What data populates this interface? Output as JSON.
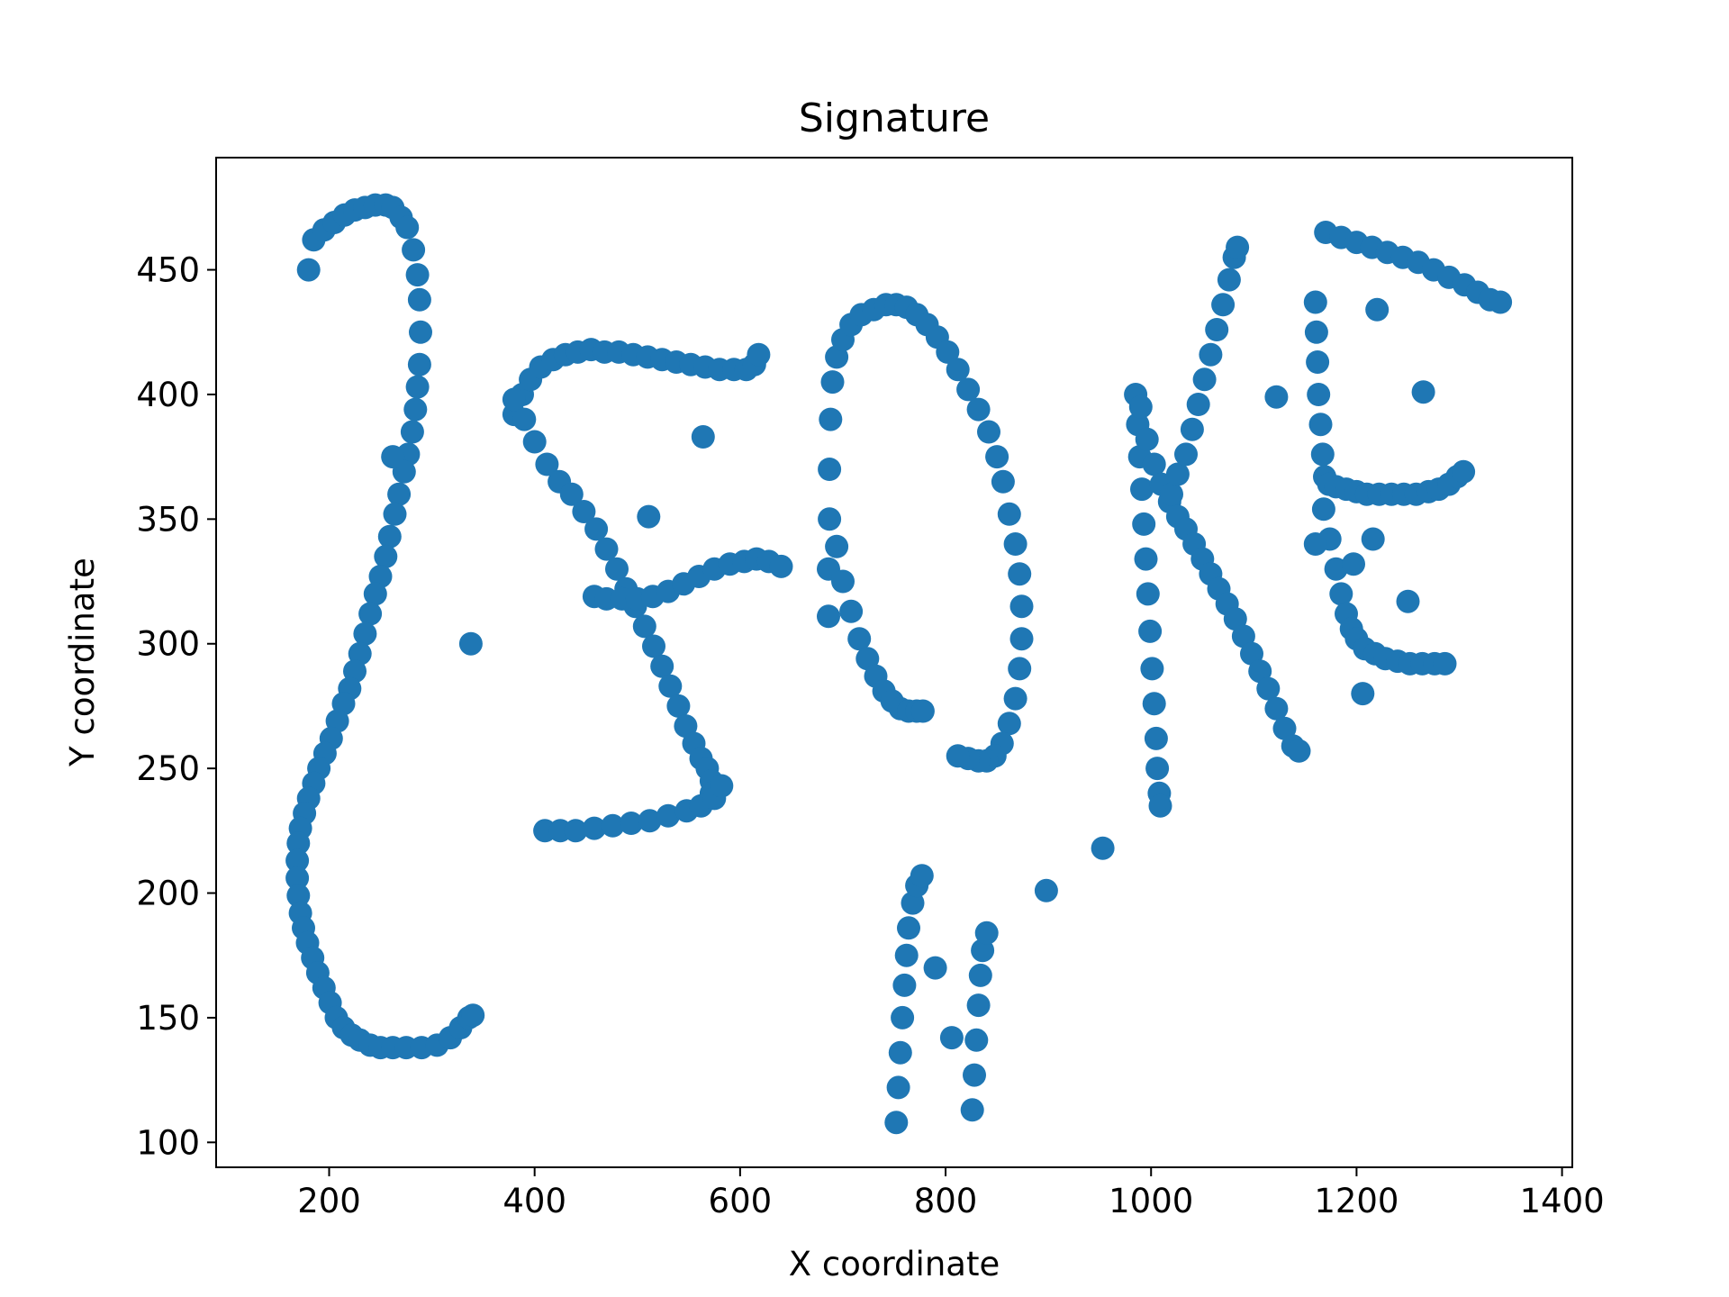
{
  "chart_data": {
    "type": "scatter",
    "title": "Signature",
    "xlabel": "X coordinate",
    "ylabel": "Y coordinate",
    "xlim": [
      90,
      1410
    ],
    "ylim": [
      90,
      495
    ],
    "xticks": [
      200,
      400,
      600,
      800,
      1000,
      1200,
      1400
    ],
    "yticks": [
      100,
      150,
      200,
      250,
      300,
      350,
      400,
      450
    ],
    "grid": false,
    "marker_color": "#1f77b4",
    "series": [
      {
        "points": [
          [
            180,
            450
          ],
          [
            185,
            462
          ],
          [
            195,
            466
          ],
          [
            205,
            469
          ],
          [
            215,
            472
          ],
          [
            225,
            474
          ],
          [
            235,
            475
          ],
          [
            245,
            476
          ],
          [
            255,
            476
          ],
          [
            262,
            475
          ],
          [
            270,
            471
          ],
          [
            276,
            467
          ],
          [
            282,
            458
          ],
          [
            286,
            448
          ],
          [
            288,
            438
          ],
          [
            289,
            425
          ],
          [
            288,
            412
          ],
          [
            286,
            403
          ],
          [
            284,
            394
          ],
          [
            281,
            385
          ],
          [
            277,
            376
          ],
          [
            273,
            369
          ],
          [
            268,
            360
          ],
          [
            264,
            352
          ],
          [
            259,
            343
          ],
          [
            255,
            335
          ],
          [
            250,
            327
          ],
          [
            245,
            320
          ],
          [
            240,
            312
          ],
          [
            235,
            304
          ],
          [
            230,
            296
          ],
          [
            225,
            289
          ],
          [
            220,
            282
          ],
          [
            214,
            276
          ],
          [
            208,
            269
          ],
          [
            202,
            262
          ],
          [
            196,
            256
          ],
          [
            190,
            250
          ],
          [
            185,
            244
          ],
          [
            180,
            238
          ],
          [
            176,
            232
          ],
          [
            172,
            226
          ],
          [
            170,
            220
          ],
          [
            169,
            213
          ],
          [
            169,
            206
          ],
          [
            170,
            199
          ],
          [
            172,
            192
          ],
          [
            175,
            186
          ],
          [
            179,
            180
          ],
          [
            184,
            174
          ],
          [
            189,
            168
          ],
          [
            195,
            162
          ],
          [
            201,
            156
          ],
          [
            207,
            150
          ],
          [
            214,
            146
          ],
          [
            222,
            143
          ],
          [
            230,
            141
          ],
          [
            240,
            139
          ],
          [
            250,
            138
          ],
          [
            262,
            138
          ],
          [
            275,
            138
          ],
          [
            290,
            138
          ],
          [
            305,
            139
          ],
          [
            318,
            142
          ],
          [
            328,
            146
          ],
          [
            336,
            150
          ],
          [
            340,
            151
          ],
          [
            338,
            300
          ],
          [
            262,
            375
          ],
          [
            380,
            392
          ],
          [
            388,
            400
          ],
          [
            396,
            406
          ],
          [
            406,
            411
          ],
          [
            418,
            414
          ],
          [
            430,
            416
          ],
          [
            442,
            417
          ],
          [
            455,
            418
          ],
          [
            468,
            417
          ],
          [
            482,
            417
          ],
          [
            496,
            416
          ],
          [
            510,
            415
          ],
          [
            524,
            414
          ],
          [
            538,
            413
          ],
          [
            552,
            412
          ],
          [
            566,
            411
          ],
          [
            580,
            410
          ],
          [
            594,
            410
          ],
          [
            606,
            410
          ],
          [
            614,
            412
          ],
          [
            618,
            416
          ],
          [
            564,
            383
          ],
          [
            380,
            398
          ],
          [
            390,
            390
          ],
          [
            400,
            381
          ],
          [
            412,
            372
          ],
          [
            424,
            365
          ],
          [
            436,
            360
          ],
          [
            448,
            353
          ],
          [
            460,
            346
          ],
          [
            470,
            338
          ],
          [
            480,
            330
          ],
          [
            489,
            322
          ],
          [
            498,
            315
          ],
          [
            507,
            307
          ],
          [
            516,
            299
          ],
          [
            524,
            291
          ],
          [
            532,
            283
          ],
          [
            540,
            275
          ],
          [
            547,
            267
          ],
          [
            555,
            260
          ],
          [
            562,
            254
          ],
          [
            568,
            250
          ],
          [
            572,
            245
          ],
          [
            572,
            240
          ],
          [
            511,
            351
          ],
          [
            458,
            319
          ],
          [
            470,
            318
          ],
          [
            485,
            318
          ],
          [
            500,
            318
          ],
          [
            515,
            319
          ],
          [
            530,
            321
          ],
          [
            545,
            324
          ],
          [
            560,
            327
          ],
          [
            575,
            330
          ],
          [
            590,
            332
          ],
          [
            604,
            333
          ],
          [
            616,
            334
          ],
          [
            628,
            333
          ],
          [
            640,
            331
          ],
          [
            410,
            225
          ],
          [
            425,
            225
          ],
          [
            440,
            225
          ],
          [
            458,
            226
          ],
          [
            476,
            227
          ],
          [
            494,
            228
          ],
          [
            512,
            229
          ],
          [
            530,
            231
          ],
          [
            548,
            233
          ],
          [
            562,
            235
          ],
          [
            575,
            238
          ],
          [
            582,
            243
          ],
          [
            686,
            311
          ],
          [
            686,
            330
          ],
          [
            687,
            350
          ],
          [
            687,
            370
          ],
          [
            688,
            390
          ],
          [
            690,
            405
          ],
          [
            694,
            415
          ],
          [
            700,
            422
          ],
          [
            708,
            428
          ],
          [
            718,
            432
          ],
          [
            730,
            434
          ],
          [
            742,
            436
          ],
          [
            752,
            436
          ],
          [
            762,
            435
          ],
          [
            772,
            432
          ],
          [
            782,
            428
          ],
          [
            792,
            423
          ],
          [
            802,
            417
          ],
          [
            812,
            410
          ],
          [
            822,
            402
          ],
          [
            832,
            394
          ],
          [
            842,
            385
          ],
          [
            850,
            375
          ],
          [
            856,
            365
          ],
          [
            862,
            352
          ],
          [
            868,
            340
          ],
          [
            872,
            328
          ],
          [
            874,
            315
          ],
          [
            874,
            302
          ],
          [
            872,
            290
          ],
          [
            868,
            278
          ],
          [
            862,
            268
          ],
          [
            855,
            260
          ],
          [
            848,
            255
          ],
          [
            840,
            253
          ],
          [
            832,
            253
          ],
          [
            822,
            254
          ],
          [
            812,
            255
          ],
          [
            694,
            339
          ],
          [
            700,
            325
          ],
          [
            708,
            313
          ],
          [
            716,
            302
          ],
          [
            724,
            294
          ],
          [
            732,
            287
          ],
          [
            740,
            281
          ],
          [
            748,
            277
          ],
          [
            756,
            274
          ],
          [
            764,
            273
          ],
          [
            772,
            273
          ],
          [
            778,
            273
          ],
          [
            752,
            108
          ],
          [
            754,
            122
          ],
          [
            756,
            136
          ],
          [
            758,
            150
          ],
          [
            760,
            163
          ],
          [
            762,
            175
          ],
          [
            764,
            186
          ],
          [
            768,
            196
          ],
          [
            772,
            203
          ],
          [
            777,
            207
          ],
          [
            790,
            170
          ],
          [
            806,
            142
          ],
          [
            826,
            113
          ],
          [
            828,
            127
          ],
          [
            830,
            141
          ],
          [
            832,
            155
          ],
          [
            834,
            167
          ],
          [
            836,
            177
          ],
          [
            840,
            184
          ],
          [
            898,
            201
          ],
          [
            953,
            218
          ],
          [
            985,
            400
          ],
          [
            987,
            388
          ],
          [
            989,
            375
          ],
          [
            991,
            362
          ],
          [
            993,
            348
          ],
          [
            995,
            334
          ],
          [
            997,
            320
          ],
          [
            999,
            305
          ],
          [
            1001,
            290
          ],
          [
            1003,
            276
          ],
          [
            1005,
            262
          ],
          [
            1006,
            250
          ],
          [
            1008,
            240
          ],
          [
            1009,
            235
          ],
          [
            990,
            395
          ],
          [
            996,
            382
          ],
          [
            1003,
            372
          ],
          [
            1010,
            364
          ],
          [
            1018,
            357
          ],
          [
            1026,
            351
          ],
          [
            1034,
            346
          ],
          [
            1042,
            340
          ],
          [
            1050,
            334
          ],
          [
            1058,
            328
          ],
          [
            1066,
            322
          ],
          [
            1074,
            316
          ],
          [
            1082,
            310
          ],
          [
            1090,
            303
          ],
          [
            1098,
            296
          ],
          [
            1106,
            289
          ],
          [
            1114,
            282
          ],
          [
            1122,
            274
          ],
          [
            1130,
            266
          ],
          [
            1138,
            259
          ],
          [
            1144,
            257
          ],
          [
            1020,
            360
          ],
          [
            1026,
            368
          ],
          [
            1034,
            376
          ],
          [
            1040,
            386
          ],
          [
            1046,
            396
          ],
          [
            1052,
            406
          ],
          [
            1058,
            416
          ],
          [
            1064,
            426
          ],
          [
            1070,
            436
          ],
          [
            1076,
            446
          ],
          [
            1081,
            455
          ],
          [
            1084,
            459
          ],
          [
            1122,
            399
          ],
          [
            1170,
            465
          ],
          [
            1185,
            463
          ],
          [
            1200,
            461
          ],
          [
            1215,
            459
          ],
          [
            1230,
            457
          ],
          [
            1245,
            455
          ],
          [
            1260,
            453
          ],
          [
            1275,
            450
          ],
          [
            1290,
            447
          ],
          [
            1305,
            444
          ],
          [
            1318,
            441
          ],
          [
            1330,
            438
          ],
          [
            1340,
            437
          ],
          [
            1160,
            437
          ],
          [
            1161,
            425
          ],
          [
            1162,
            413
          ],
          [
            1163,
            400
          ],
          [
            1165,
            388
          ],
          [
            1167,
            376
          ],
          [
            1169,
            367
          ],
          [
            1173,
            364
          ],
          [
            1180,
            363
          ],
          [
            1190,
            362
          ],
          [
            1200,
            361
          ],
          [
            1210,
            360
          ],
          [
            1222,
            360
          ],
          [
            1234,
            360
          ],
          [
            1246,
            360
          ],
          [
            1258,
            360
          ],
          [
            1270,
            361
          ],
          [
            1280,
            362
          ],
          [
            1290,
            364
          ],
          [
            1298,
            367
          ],
          [
            1304,
            369
          ],
          [
            1220,
            434
          ],
          [
            1265,
            401
          ],
          [
            1168,
            354
          ],
          [
            1174,
            342
          ],
          [
            1180,
            330
          ],
          [
            1185,
            320
          ],
          [
            1190,
            312
          ],
          [
            1195,
            306
          ],
          [
            1200,
            302
          ],
          [
            1208,
            298
          ],
          [
            1218,
            296
          ],
          [
            1228,
            294
          ],
          [
            1240,
            293
          ],
          [
            1252,
            292
          ],
          [
            1264,
            292
          ],
          [
            1276,
            292
          ],
          [
            1286,
            292
          ],
          [
            1160,
            340
          ],
          [
            1197,
            332
          ],
          [
            1216,
            342
          ],
          [
            1250,
            317
          ],
          [
            1206,
            280
          ]
        ]
      }
    ]
  }
}
